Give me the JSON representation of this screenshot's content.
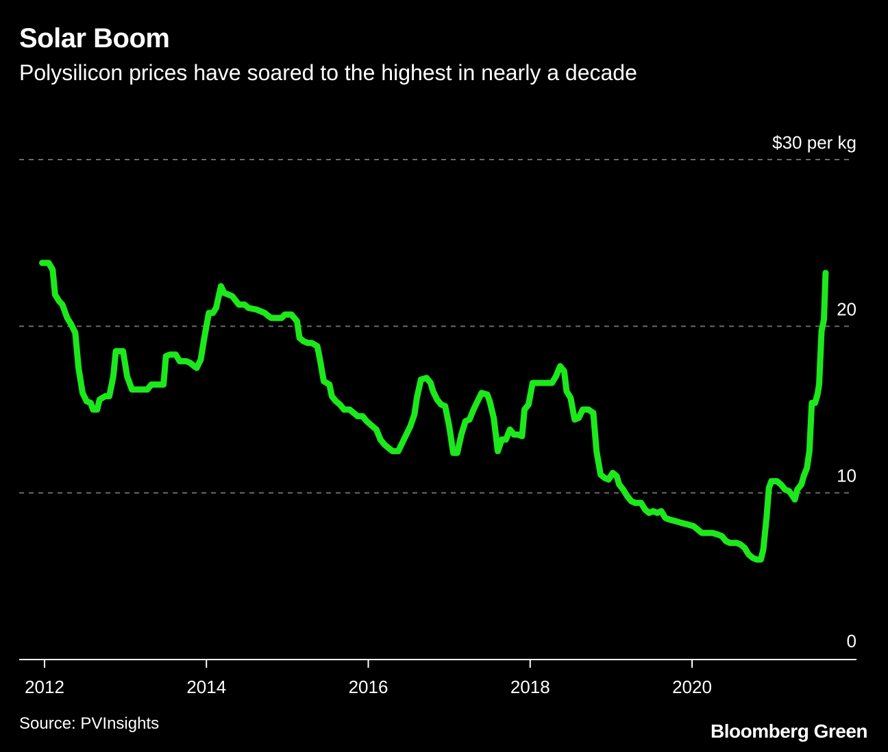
{
  "header": {
    "title": "Solar Boom",
    "subtitle": "Polysilicon prices have soared to the highest in nearly a decade"
  },
  "footer": {
    "source": "Source: PVInsights",
    "brand": "Bloomberg Green"
  },
  "colors": {
    "background": "#000000",
    "line": "#1CE81C",
    "grid": "#6b6b6b",
    "text": "#ffffff"
  },
  "chart_data": {
    "type": "line",
    "title": "Solar Boom",
    "subtitle": "Polysilicon prices have soared to the highest in nearly a decade",
    "unit_label": "$30 per kg",
    "x_ticks": [
      "2012",
      "2014",
      "2016",
      "2018",
      "2020"
    ],
    "x_tick_values": [
      2012,
      2014,
      2016,
      2018,
      2020
    ],
    "y_ticks": [
      {
        "value": 30,
        "label": "$30 per kg"
      },
      {
        "value": 20,
        "label": "20"
      },
      {
        "value": 10,
        "label": "10"
      },
      {
        "value": 0,
        "label": "0"
      }
    ],
    "xlim": [
      2011.7,
      2021.85
    ],
    "ylim": [
      0,
      30
    ],
    "grid": true,
    "series": [
      {
        "points": [
          [
            2011.97,
            23.8
          ],
          [
            2012.05,
            23.8
          ],
          [
            2012.1,
            23.4
          ],
          [
            2012.13,
            21.9
          ],
          [
            2012.18,
            21.5
          ],
          [
            2012.22,
            21.3
          ],
          [
            2012.28,
            20.5
          ],
          [
            2012.33,
            20.1
          ],
          [
            2012.38,
            19.6
          ],
          [
            2012.42,
            17.5
          ],
          [
            2012.47,
            16.0
          ],
          [
            2012.52,
            15.5
          ],
          [
            2012.57,
            15.4
          ],
          [
            2012.6,
            15.0
          ],
          [
            2012.65,
            15.0
          ],
          [
            2012.68,
            15.6
          ],
          [
            2012.75,
            15.8
          ],
          [
            2012.8,
            15.8
          ],
          [
            2012.85,
            17.0
          ],
          [
            2012.88,
            18.5
          ],
          [
            2012.97,
            18.5
          ],
          [
            2013.02,
            17.0
          ],
          [
            2013.08,
            16.2
          ],
          [
            2013.15,
            16.2
          ],
          [
            2013.27,
            16.2
          ],
          [
            2013.32,
            16.5
          ],
          [
            2013.42,
            16.5
          ],
          [
            2013.47,
            16.5
          ],
          [
            2013.5,
            18.2
          ],
          [
            2013.55,
            18.3
          ],
          [
            2013.62,
            18.3
          ],
          [
            2013.67,
            17.9
          ],
          [
            2013.75,
            17.9
          ],
          [
            2013.8,
            17.8
          ],
          [
            2013.85,
            17.6
          ],
          [
            2013.88,
            17.5
          ],
          [
            2013.93,
            18.0
          ],
          [
            2013.97,
            19.2
          ],
          [
            2014.03,
            20.8
          ],
          [
            2014.08,
            20.8
          ],
          [
            2014.12,
            21.1
          ],
          [
            2014.18,
            22.4
          ],
          [
            2014.22,
            22.0
          ],
          [
            2014.27,
            21.9
          ],
          [
            2014.32,
            21.8
          ],
          [
            2014.4,
            21.3
          ],
          [
            2014.47,
            21.3
          ],
          [
            2014.52,
            21.1
          ],
          [
            2014.62,
            21.0
          ],
          [
            2014.67,
            20.9
          ],
          [
            2014.72,
            20.8
          ],
          [
            2014.77,
            20.6
          ],
          [
            2014.8,
            20.5
          ],
          [
            2014.85,
            20.5
          ],
          [
            2014.93,
            20.5
          ],
          [
            2014.97,
            20.7
          ],
          [
            2015.05,
            20.7
          ],
          [
            2015.12,
            20.3
          ],
          [
            2015.15,
            19.3
          ],
          [
            2015.2,
            19.1
          ],
          [
            2015.25,
            19.0
          ],
          [
            2015.3,
            19.0
          ],
          [
            2015.37,
            18.8
          ],
          [
            2015.4,
            18.1
          ],
          [
            2015.45,
            16.7
          ],
          [
            2015.52,
            16.5
          ],
          [
            2015.55,
            15.8
          ],
          [
            2015.6,
            15.5
          ],
          [
            2015.65,
            15.3
          ],
          [
            2015.7,
            15.0
          ],
          [
            2015.77,
            15.0
          ],
          [
            2015.82,
            14.8
          ],
          [
            2015.87,
            14.6
          ],
          [
            2015.93,
            14.6
          ],
          [
            2015.98,
            14.3
          ],
          [
            2016.05,
            14.0
          ],
          [
            2016.1,
            13.8
          ],
          [
            2016.15,
            13.2
          ],
          [
            2016.2,
            12.9
          ],
          [
            2016.25,
            12.7
          ],
          [
            2016.3,
            12.5
          ],
          [
            2016.37,
            12.5
          ],
          [
            2016.42,
            13.0
          ],
          [
            2016.47,
            13.5
          ],
          [
            2016.52,
            14.0
          ],
          [
            2016.57,
            14.7
          ],
          [
            2016.6,
            15.7
          ],
          [
            2016.65,
            16.8
          ],
          [
            2016.72,
            16.9
          ],
          [
            2016.77,
            16.6
          ],
          [
            2016.8,
            16.1
          ],
          [
            2016.85,
            15.6
          ],
          [
            2016.9,
            15.3
          ],
          [
            2016.95,
            15.2
          ],
          [
            2017.0,
            14.0
          ],
          [
            2017.05,
            12.4
          ],
          [
            2017.1,
            12.4
          ],
          [
            2017.15,
            13.5
          ],
          [
            2017.2,
            14.3
          ],
          [
            2017.25,
            14.4
          ],
          [
            2017.3,
            15.0
          ],
          [
            2017.35,
            15.5
          ],
          [
            2017.4,
            16.0
          ],
          [
            2017.47,
            15.9
          ],
          [
            2017.5,
            15.5
          ],
          [
            2017.55,
            14.5
          ],
          [
            2017.6,
            12.5
          ],
          [
            2017.65,
            13.2
          ],
          [
            2017.7,
            13.2
          ],
          [
            2017.75,
            13.8
          ],
          [
            2017.8,
            13.5
          ],
          [
            2017.85,
            13.5
          ],
          [
            2017.9,
            13.4
          ],
          [
            2017.93,
            15.0
          ],
          [
            2017.98,
            15.3
          ],
          [
            2018.03,
            16.6
          ],
          [
            2018.1,
            16.6
          ],
          [
            2018.2,
            16.6
          ],
          [
            2018.27,
            16.6
          ],
          [
            2018.32,
            17.0
          ],
          [
            2018.37,
            17.6
          ],
          [
            2018.42,
            17.3
          ],
          [
            2018.45,
            16.1
          ],
          [
            2018.5,
            15.7
          ],
          [
            2018.55,
            14.4
          ],
          [
            2018.6,
            14.5
          ],
          [
            2018.65,
            15.0
          ],
          [
            2018.72,
            15.0
          ],
          [
            2018.78,
            14.8
          ],
          [
            2018.82,
            12.5
          ],
          [
            2018.87,
            11.1
          ],
          [
            2018.92,
            10.9
          ],
          [
            2018.97,
            10.8
          ],
          [
            2019.02,
            11.2
          ],
          [
            2019.07,
            11.0
          ],
          [
            2019.1,
            10.5
          ],
          [
            2019.15,
            10.2
          ],
          [
            2019.2,
            9.8
          ],
          [
            2019.25,
            9.5
          ],
          [
            2019.3,
            9.4
          ],
          [
            2019.37,
            9.4
          ],
          [
            2019.42,
            9.0
          ],
          [
            2019.47,
            8.8
          ],
          [
            2019.52,
            8.9
          ],
          [
            2019.57,
            8.8
          ],
          [
            2019.62,
            8.9
          ],
          [
            2019.67,
            8.5
          ],
          [
            2019.72,
            8.4
          ],
          [
            2019.8,
            8.3
          ],
          [
            2019.87,
            8.2
          ],
          [
            2019.95,
            8.1
          ],
          [
            2020.02,
            8.0
          ],
          [
            2020.07,
            7.8
          ],
          [
            2020.12,
            7.6
          ],
          [
            2020.17,
            7.6
          ],
          [
            2020.25,
            7.6
          ],
          [
            2020.32,
            7.5
          ],
          [
            2020.37,
            7.4
          ],
          [
            2020.42,
            7.1
          ],
          [
            2020.47,
            7.0
          ],
          [
            2020.55,
            7.0
          ],
          [
            2020.6,
            6.9
          ],
          [
            2020.65,
            6.7
          ],
          [
            2020.7,
            6.3
          ],
          [
            2020.75,
            6.1
          ],
          [
            2020.8,
            6.0
          ],
          [
            2020.85,
            6.0
          ],
          [
            2020.88,
            6.6
          ],
          [
            2020.92,
            8.5
          ],
          [
            2020.95,
            10.3
          ],
          [
            2020.98,
            10.7
          ],
          [
            2021.05,
            10.7
          ],
          [
            2021.1,
            10.5
          ],
          [
            2021.15,
            10.2
          ],
          [
            2021.2,
            10.1
          ],
          [
            2021.23,
            9.9
          ],
          [
            2021.27,
            9.6
          ],
          [
            2021.3,
            10.2
          ],
          [
            2021.35,
            10.5
          ],
          [
            2021.38,
            11.0
          ],
          [
            2021.42,
            11.5
          ],
          [
            2021.45,
            12.5
          ],
          [
            2021.48,
            15.4
          ],
          [
            2021.52,
            15.4
          ],
          [
            2021.55,
            15.9
          ],
          [
            2021.57,
            16.5
          ],
          [
            2021.6,
            19.7
          ],
          [
            2021.63,
            20.4
          ],
          [
            2021.65,
            23.2
          ]
        ]
      }
    ]
  }
}
